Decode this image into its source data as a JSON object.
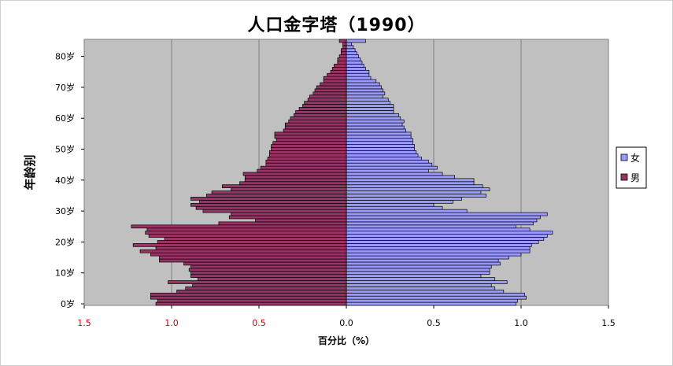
{
  "chart_data": {
    "type": "bar",
    "orientation": "horizontal",
    "title": "人口金字塔（1990）",
    "xlabel": "百分比（%）",
    "ylabel": "年龄别",
    "xlim": [
      -1.5,
      1.5
    ],
    "xticks": [
      "1.5",
      "1.0",
      "0.5",
      "0.0",
      "0.5",
      "1.0",
      "1.5"
    ],
    "yticks": [
      "0岁",
      "10岁",
      "20岁",
      "30岁",
      "40岁",
      "50岁",
      "60岁",
      "70岁",
      "80岁"
    ],
    "grid": "vertical",
    "legend_position": "right",
    "ages": [
      0,
      1,
      2,
      3,
      4,
      5,
      6,
      7,
      8,
      9,
      10,
      11,
      12,
      13,
      14,
      15,
      16,
      17,
      18,
      19,
      20,
      21,
      22,
      23,
      24,
      25,
      26,
      27,
      28,
      29,
      30,
      31,
      32,
      33,
      34,
      35,
      36,
      37,
      38,
      39,
      40,
      41,
      42,
      43,
      44,
      45,
      46,
      47,
      48,
      49,
      50,
      51,
      52,
      53,
      54,
      55,
      56,
      57,
      58,
      59,
      60,
      61,
      62,
      63,
      64,
      65,
      66,
      67,
      68,
      69,
      70,
      71,
      72,
      73,
      74,
      75,
      76,
      77,
      78,
      79,
      80,
      81,
      82,
      83,
      84,
      85
    ],
    "series": [
      {
        "name": "女",
        "color": "#9999ff",
        "values": [
          0.97,
          0.98,
          1.03,
          1.02,
          0.9,
          0.85,
          0.83,
          0.92,
          0.85,
          0.77,
          0.82,
          0.82,
          0.83,
          0.88,
          0.87,
          0.93,
          1.0,
          1.05,
          1.05,
          1.06,
          1.1,
          1.13,
          1.15,
          1.18,
          1.05,
          0.97,
          1.07,
          1.09,
          1.11,
          1.15,
          0.69,
          0.55,
          0.5,
          0.61,
          0.66,
          0.8,
          0.77,
          0.82,
          0.78,
          0.73,
          0.73,
          0.62,
          0.55,
          0.47,
          0.52,
          0.49,
          0.47,
          0.43,
          0.41,
          0.4,
          0.39,
          0.39,
          0.38,
          0.38,
          0.37,
          0.37,
          0.34,
          0.33,
          0.32,
          0.33,
          0.31,
          0.3,
          0.27,
          0.27,
          0.27,
          0.25,
          0.24,
          0.21,
          0.22,
          0.21,
          0.2,
          0.19,
          0.17,
          0.14,
          0.13,
          0.13,
          0.11,
          0.1,
          0.09,
          0.08,
          0.07,
          0.06,
          0.05,
          0.04,
          0.03,
          0.11
        ]
      },
      {
        "name": "男",
        "color": "#993366",
        "values": [
          1.09,
          1.08,
          1.12,
          1.12,
          0.97,
          0.92,
          0.88,
          1.02,
          0.85,
          0.89,
          0.89,
          0.9,
          0.89,
          0.93,
          1.07,
          1.07,
          1.12,
          1.18,
          1.09,
          1.22,
          1.08,
          1.04,
          1.13,
          1.15,
          1.14,
          1.23,
          0.73,
          0.52,
          0.67,
          0.66,
          0.82,
          0.86,
          0.89,
          0.84,
          0.89,
          0.8,
          0.77,
          0.66,
          0.71,
          0.61,
          0.58,
          0.58,
          0.59,
          0.51,
          0.49,
          0.46,
          0.46,
          0.45,
          0.44,
          0.44,
          0.43,
          0.43,
          0.42,
          0.4,
          0.41,
          0.41,
          0.36,
          0.35,
          0.35,
          0.33,
          0.32,
          0.3,
          0.29,
          0.27,
          0.25,
          0.24,
          0.22,
          0.21,
          0.19,
          0.18,
          0.17,
          0.15,
          0.13,
          0.13,
          0.11,
          0.09,
          0.08,
          0.07,
          0.05,
          0.05,
          0.04,
          0.03,
          0.03,
          0.02,
          0.02,
          0.04
        ]
      }
    ]
  }
}
